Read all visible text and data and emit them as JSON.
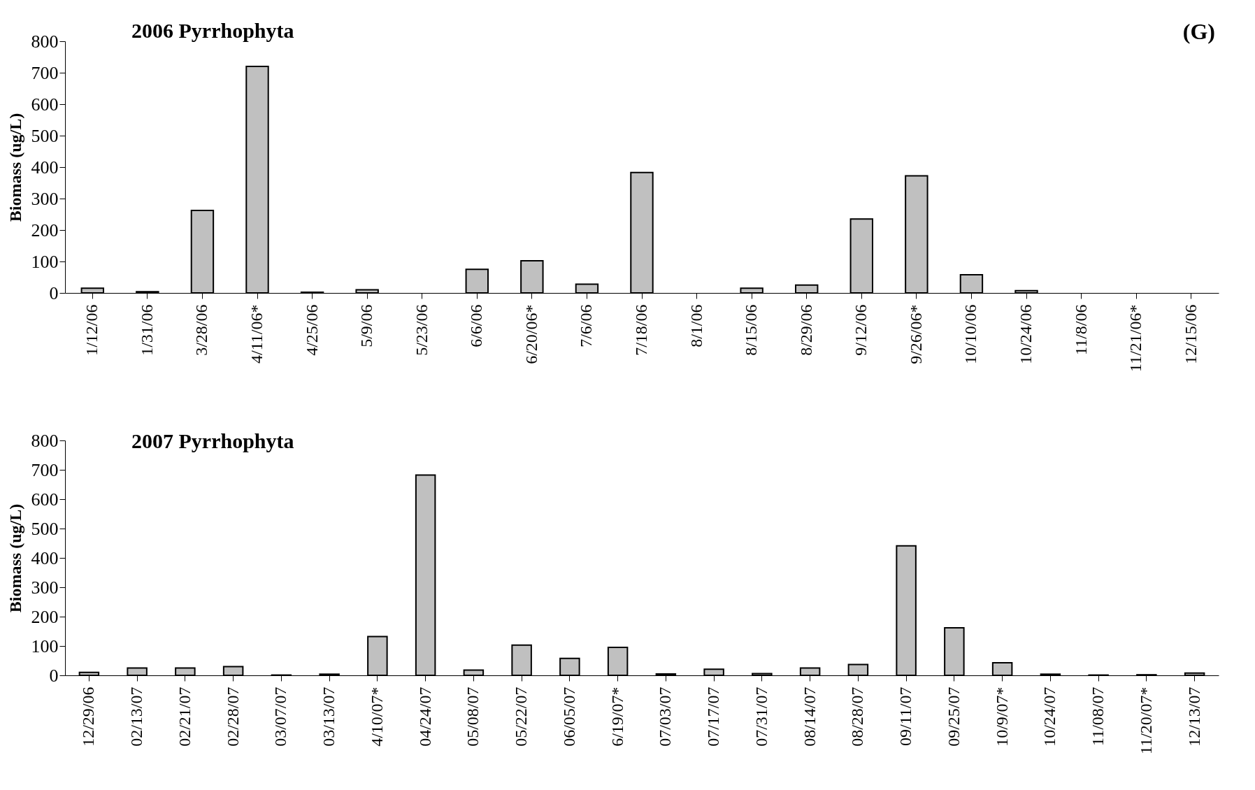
{
  "chart_data": [
    {
      "type": "bar",
      "title": "2006 Pyrrhophyta",
      "ylabel": "Biomass (ug/L)",
      "annotations": [
        "(G)"
      ],
      "categories": [
        "1/12/06",
        "1/31/06",
        "3/28/06",
        "4/11/06*",
        "4/25/06",
        "5/9/06",
        "5/23/06",
        "6/6/06",
        "6/20/06*",
        "7/6/06",
        "7/18/06",
        "8/1/06",
        "8/15/06",
        "8/29/06",
        "9/12/06",
        "9/26/06*",
        "10/10/06",
        "10/24/06",
        "11/8/06",
        "11/21/06*",
        "12/15/06"
      ],
      "values": [
        15,
        4,
        262,
        720,
        2,
        10,
        0,
        75,
        102,
        28,
        383,
        0,
        15,
        25,
        235,
        372,
        58,
        7,
        0,
        0,
        0
      ],
      "color": "#c0c0c0",
      "ylim": [
        0,
        800
      ],
      "yticks": [
        0,
        100,
        200,
        300,
        400,
        500,
        600,
        700,
        800
      ],
      "grid": false
    },
    {
      "type": "bar",
      "title": "2007 Pyrrhophyta",
      "ylabel": "Biomass (ug/L)",
      "categories": [
        "12/29/06",
        "02/13/07",
        "02/21/07",
        "02/28/07",
        "03/07/07",
        "03/13/07",
        "4/10/07*",
        "04/24/07",
        "05/08/07",
        "05/22/07",
        "06/05/07",
        "6/19/07*",
        "07/03/07",
        "07/17/07",
        "07/31/07",
        "08/14/07",
        "08/28/07",
        "09/11/07",
        "09/25/07",
        "10/9/07*",
        "10/24/07",
        "11/08/07",
        "11/20/07*",
        "12/13/07"
      ],
      "values": [
        10,
        25,
        25,
        30,
        1,
        4,
        132,
        682,
        18,
        103,
        58,
        95,
        5,
        21,
        6,
        25,
        37,
        441,
        162,
        43,
        4,
        1,
        2,
        8
      ],
      "color": "#c0c0c0",
      "ylim": [
        0,
        800
      ],
      "yticks": [
        0,
        100,
        200,
        300,
        400,
        500,
        600,
        700,
        800
      ],
      "grid": false
    }
  ]
}
